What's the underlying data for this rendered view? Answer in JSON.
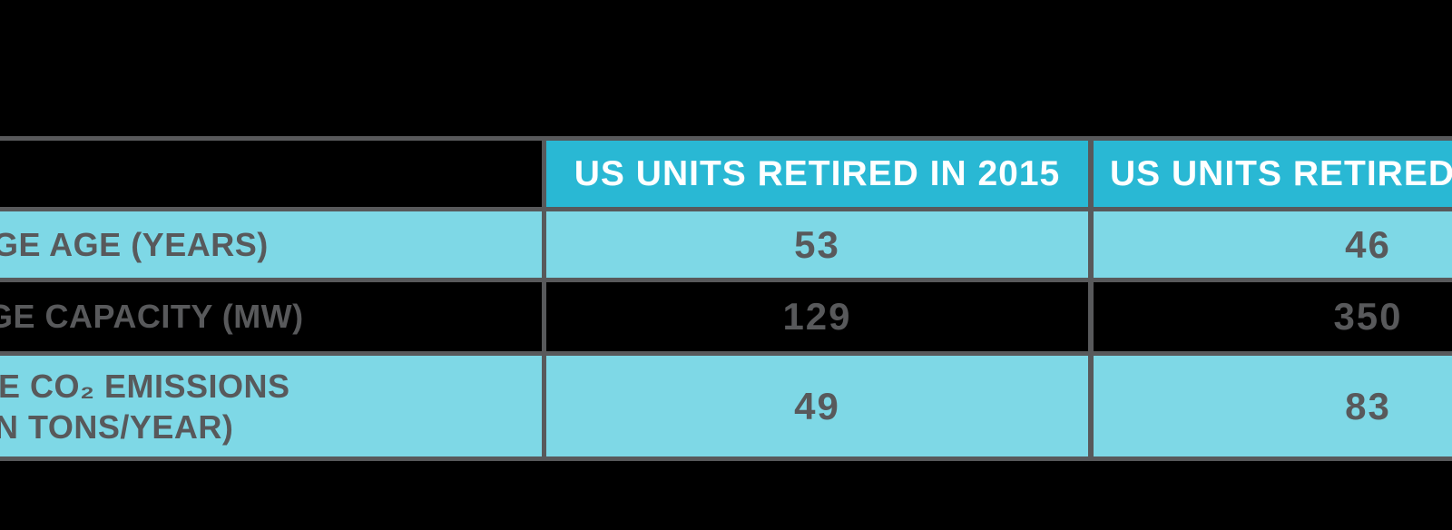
{
  "table": {
    "header": {
      "col_2015": "US UNITS RETIRED IN 2015",
      "col_right": "US UNITS RETIRED"
    },
    "rows": [
      {
        "label_lines": [
          "GE AGE (YEARS)",
          ""
        ],
        "v2015": "53",
        "v_right": "46"
      },
      {
        "label_lines": [
          "GE CAPACITY (MW)",
          ""
        ],
        "v2015": "129",
        "v_right": "350"
      },
      {
        "label_lines": [
          "E CO₂ EMISSIONS",
          "N TONS/YEAR)"
        ],
        "v2015": "49",
        "v_right": "83"
      }
    ]
  },
  "colors": {
    "background": "#000000",
    "header_fill": "#29b8d4",
    "row_fill": "#7ed8e6",
    "grid_border": "#58595b",
    "text_dark": "#58595b",
    "text_header": "#ffffff"
  },
  "chart_data": {
    "type": "table",
    "title": "",
    "columns": [
      "",
      "US UNITS RETIRED IN 2015",
      "US UNITS RETIRED"
    ],
    "row_labels": [
      "GE AGE (YEARS)",
      "GE CAPACITY (MW)",
      "E CO₂ EMISSIONS N TONS/YEAR)"
    ],
    "series": [
      {
        "name": "US UNITS RETIRED IN 2015",
        "values": [
          53,
          129,
          49
        ]
      },
      {
        "name": "US UNITS RETIRED",
        "values": [
          46,
          350,
          83
        ]
      }
    ],
    "layout_hints": {
      "grid": "on",
      "alternating_row_fills": [
        "#7ed8e6",
        "transparent"
      ],
      "cropped_edges": "left and right"
    }
  }
}
